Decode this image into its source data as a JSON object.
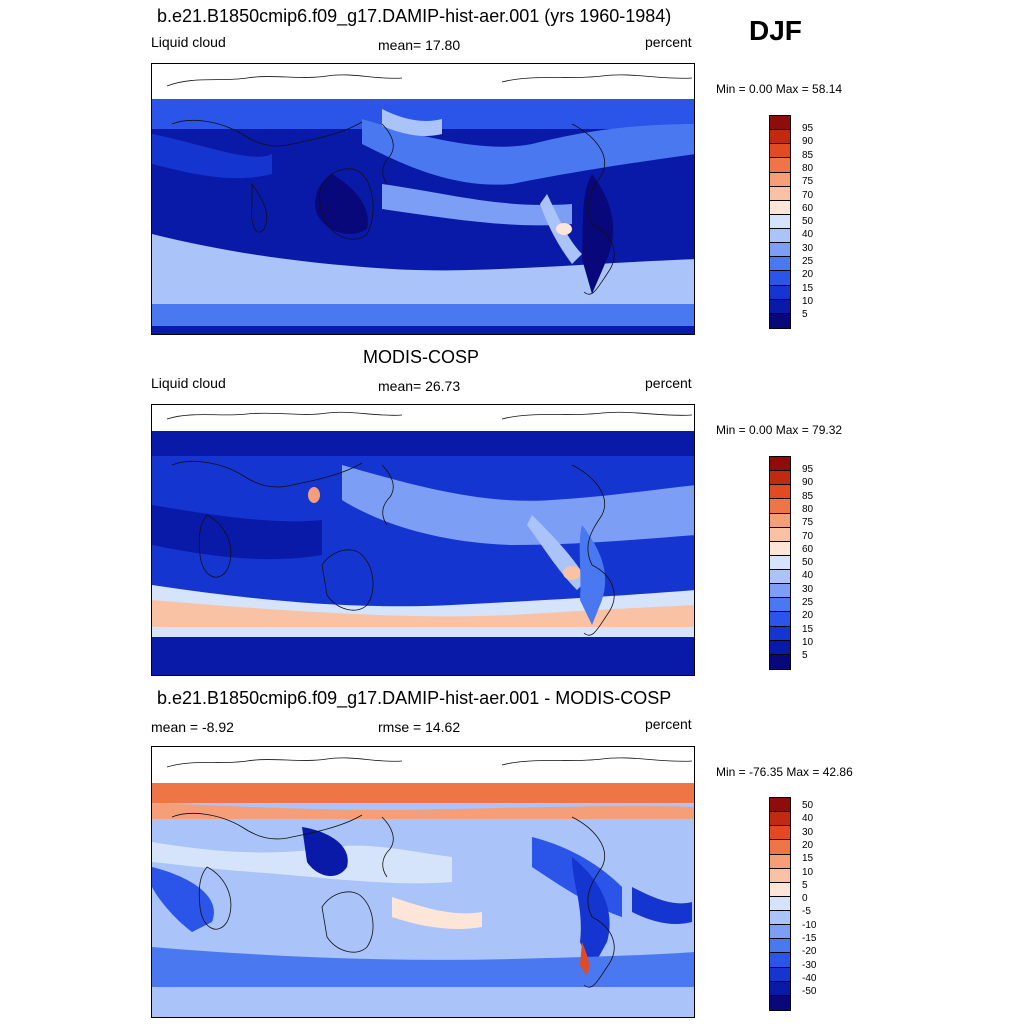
{
  "season_label": "DJF",
  "panels": [
    {
      "title": "b.e21.B1850cmip6.f09_g17.DAMIP-hist-aer.001 (yrs 1960-1984)",
      "left_text": "Liquid cloud",
      "center_text": "mean=  17.80",
      "right_text": "percent",
      "minmax_text": "Min =    0.00 Max =  58.14",
      "colorbar_labels": [
        "95",
        "90",
        "85",
        "80",
        "75",
        "70",
        "60",
        "50",
        "40",
        "30",
        "25",
        "20",
        "15",
        "10",
        "5"
      ]
    },
    {
      "title": "MODIS-COSP",
      "left_text": "Liquid cloud",
      "center_text": "mean=  26.73",
      "right_text": "percent",
      "minmax_text": "Min =    0.00 Max =  79.32",
      "colorbar_labels": [
        "95",
        "90",
        "85",
        "80",
        "75",
        "70",
        "60",
        "50",
        "40",
        "30",
        "25",
        "20",
        "15",
        "10",
        "5"
      ]
    },
    {
      "title": "b.e21.B1850cmip6.f09_g17.DAMIP-hist-aer.001 - MODIS-COSP",
      "left_text": "mean =  -8.92",
      "center_text": "rmse =  14.62",
      "right_text": "percent",
      "minmax_text": "Min = -76.35 Max =  42.86",
      "colorbar_labels": [
        "50",
        "40",
        "30",
        "20",
        "15",
        "10",
        "5",
        "0",
        "-5",
        "-10",
        "-15",
        "-20",
        "-30",
        "-40",
        "-50"
      ]
    }
  ],
  "colors": {
    "palette": [
      "#08087a",
      "#0a1aa8",
      "#1535d0",
      "#2a55e8",
      "#4a78f0",
      "#7c9ef5",
      "#aac3f8",
      "#d6e4fb",
      "#fde6d8",
      "#f9c2a4",
      "#f59e78",
      "#ef7547",
      "#e24b22",
      "#c12a10",
      "#8e0d0a"
    ]
  }
}
